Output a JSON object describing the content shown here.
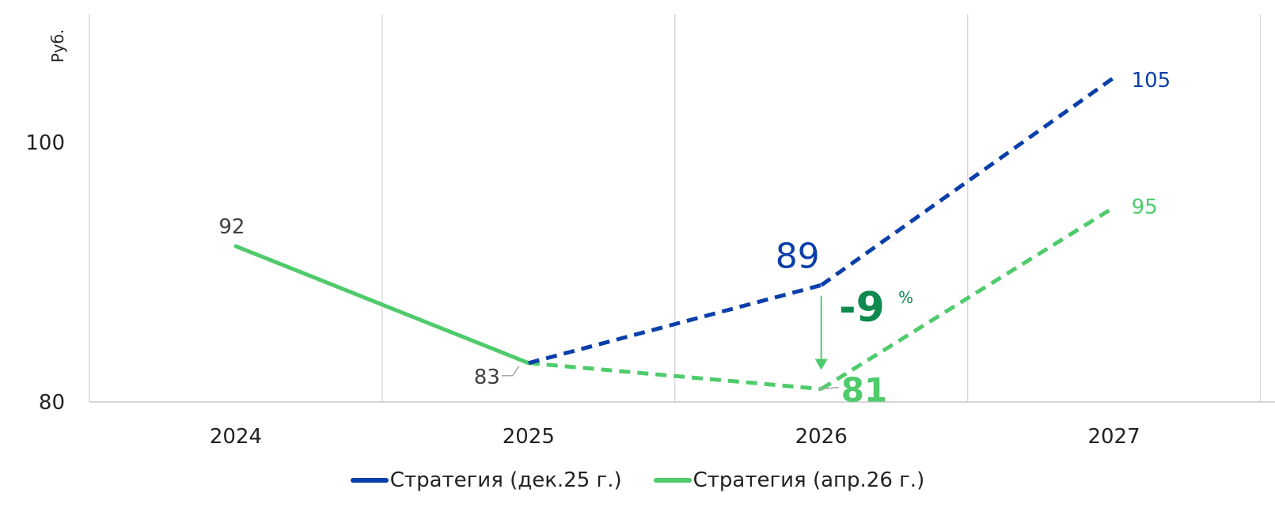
{
  "chart_data": {
    "type": "line",
    "ylabel": "Руб.",
    "categories": [
      "2024",
      "2025",
      "2026",
      "2027"
    ],
    "yticks": [
      "80",
      "100"
    ],
    "ylim": [
      80,
      110
    ],
    "grid": "vertical",
    "series": [
      {
        "name": "Стратегия (дек.25 г.)",
        "color": "#0a3faa",
        "values": [
          null,
          83,
          89,
          105
        ],
        "labels": [
          null,
          null,
          "89",
          "105"
        ]
      },
      {
        "name": "Стратегия (апр.26 г.)",
        "color": "#4fcb6c",
        "values": [
          92,
          83,
          81,
          95
        ],
        "labels": [
          "92",
          "83",
          "81",
          "95"
        ]
      }
    ],
    "annotation": {
      "value": "-9",
      "unit": "%",
      "color": "#0e8a4f"
    },
    "legend_position": "bottom"
  }
}
